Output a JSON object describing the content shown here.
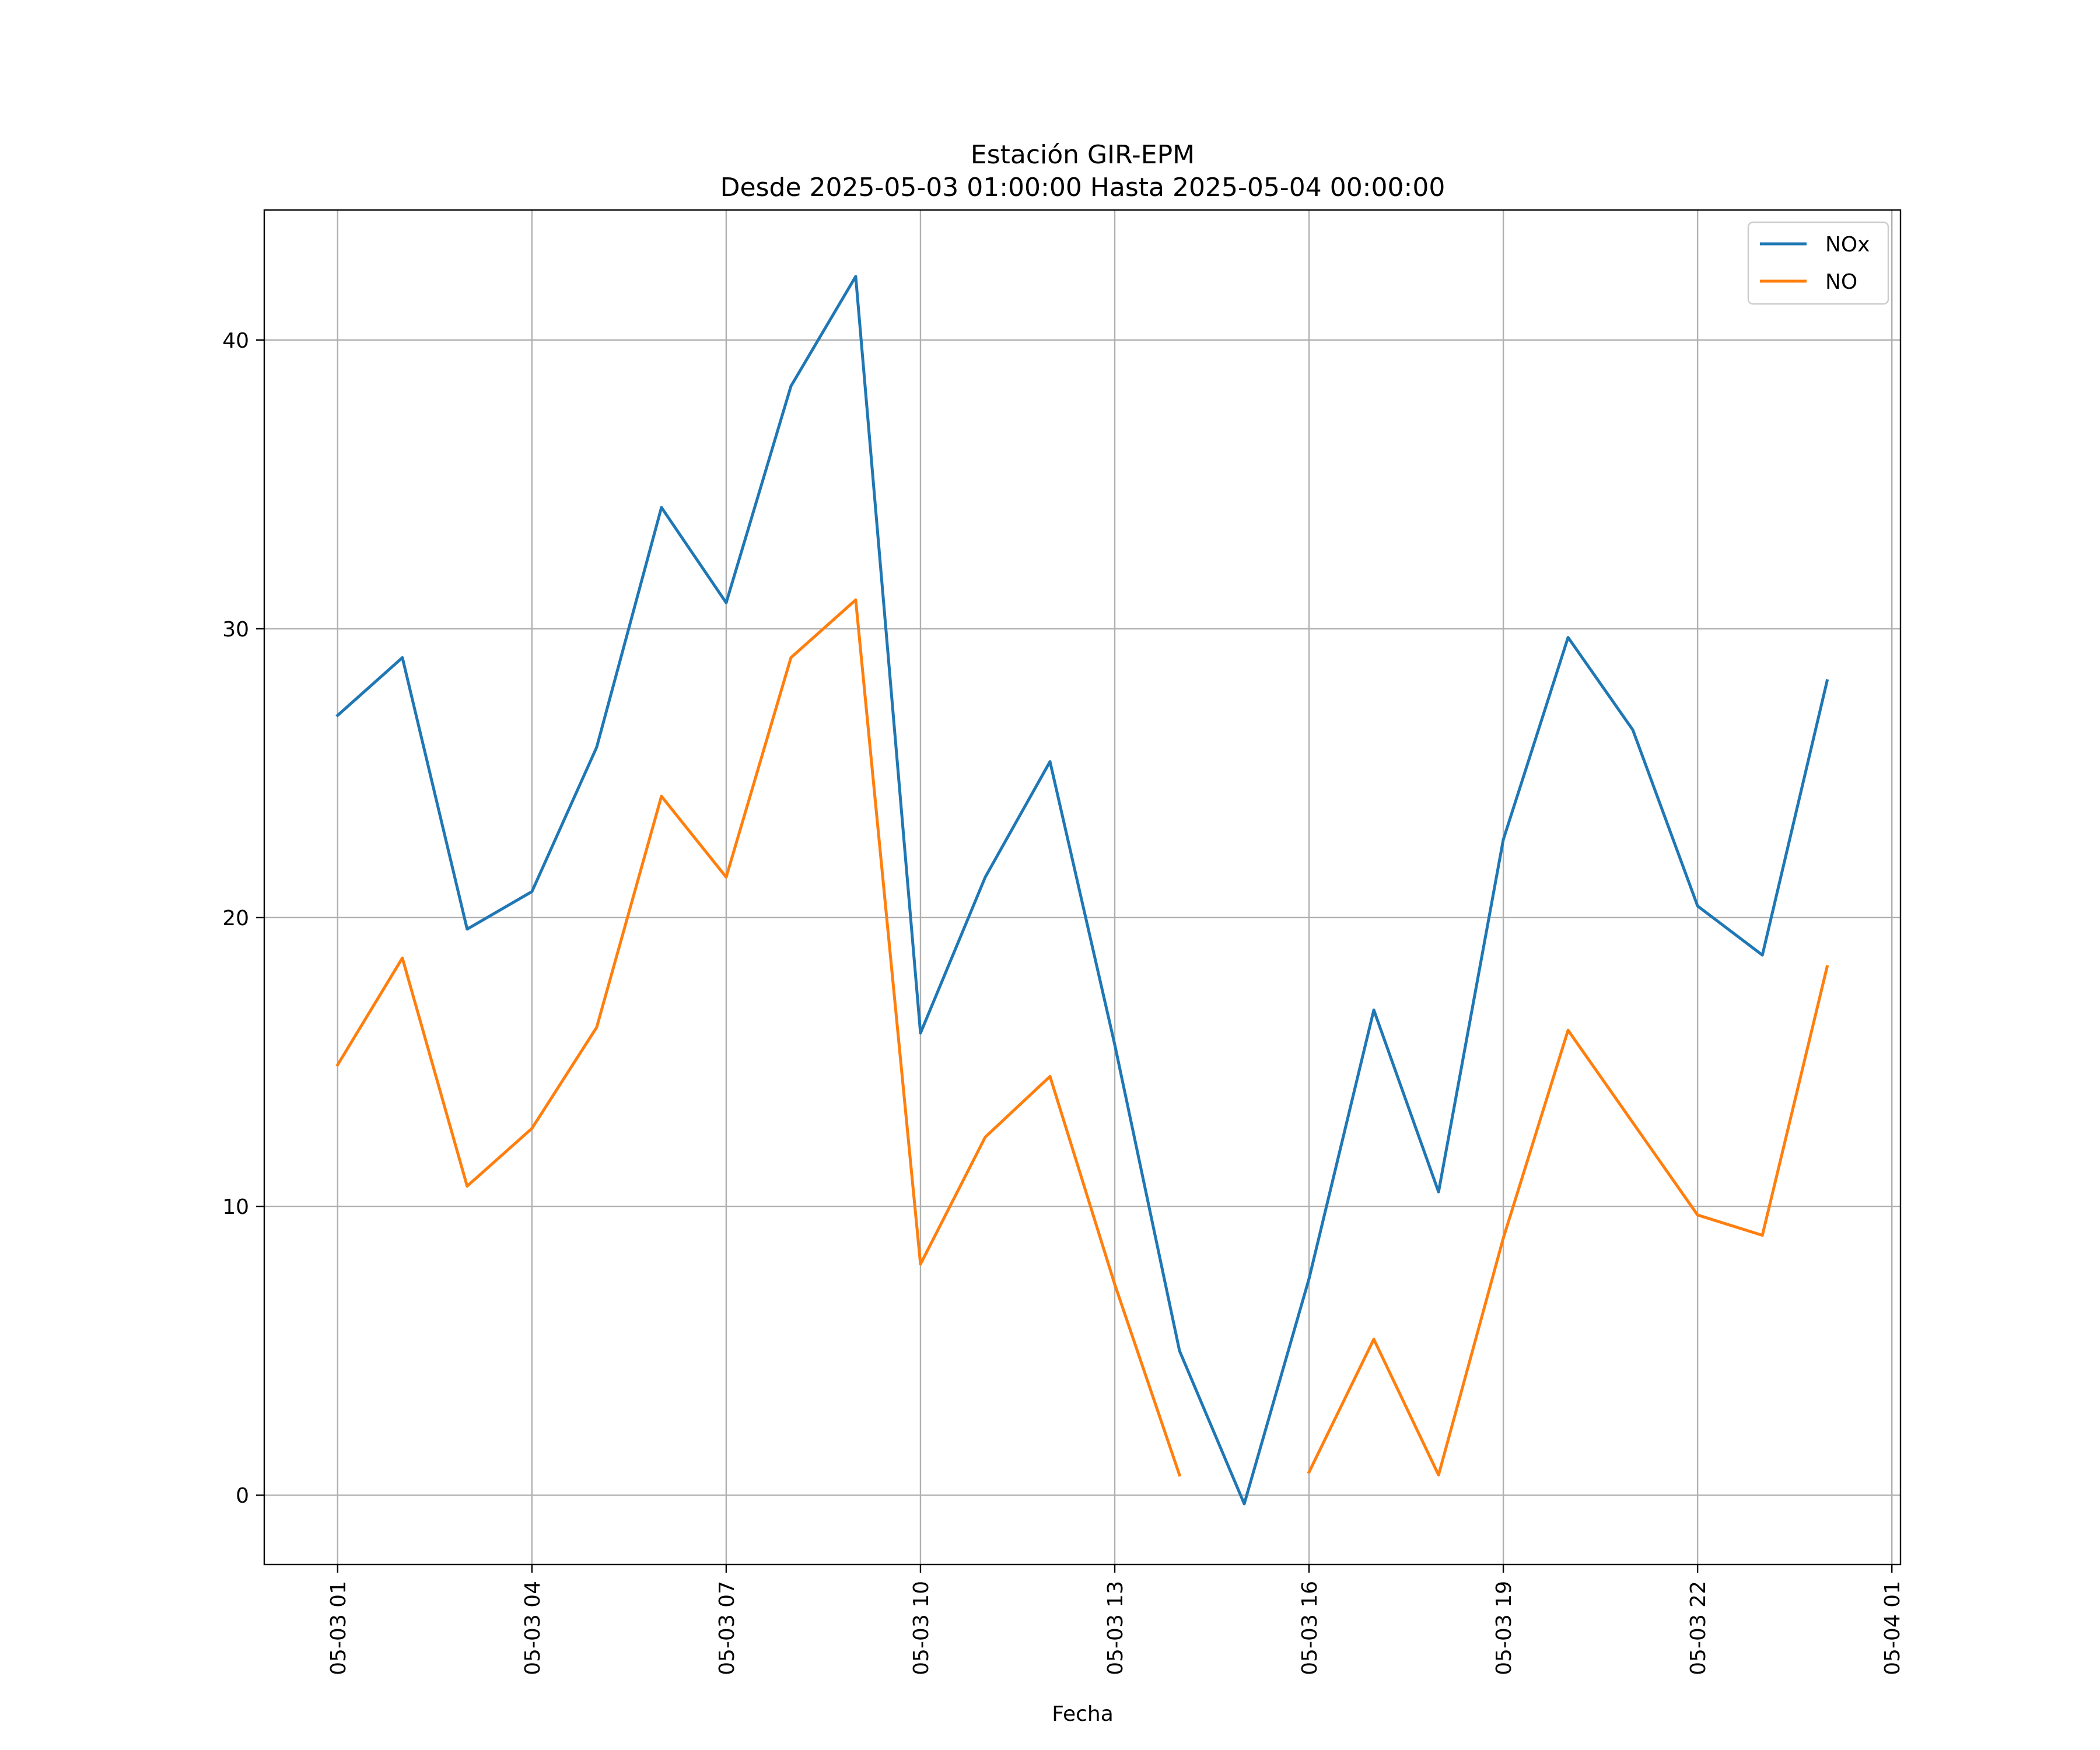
{
  "chart_data": {
    "type": "line",
    "title": "Estación GIR-EPM",
    "subtitle": "Desde 2025-05-03 01:00:00 Hasta 2025-05-04 00:00:00",
    "xlabel": "Fecha",
    "ylabel": "",
    "x": [
      "2025-05-03 01:00",
      "2025-05-03 02:00",
      "2025-05-03 03:00",
      "2025-05-03 04:00",
      "2025-05-03 05:00",
      "2025-05-03 06:00",
      "2025-05-03 07:00",
      "2025-05-03 08:00",
      "2025-05-03 09:00",
      "2025-05-03 10:00",
      "2025-05-03 11:00",
      "2025-05-03 12:00",
      "2025-05-03 13:00",
      "2025-05-03 14:00",
      "2025-05-03 15:00",
      "2025-05-03 16:00",
      "2025-05-03 17:00",
      "2025-05-03 18:00",
      "2025-05-03 19:00",
      "2025-05-03 20:00",
      "2025-05-03 21:00",
      "2025-05-03 22:00",
      "2025-05-03 23:00",
      "2025-05-04 00:00"
    ],
    "xlim": [
      "2025-05-02 23:52",
      "2025-05-04 01:08"
    ],
    "x_ticks": [
      "2025-05-03 01:00",
      "2025-05-03 04:00",
      "2025-05-03 07:00",
      "2025-05-03 10:00",
      "2025-05-03 13:00",
      "2025-05-03 16:00",
      "2025-05-03 19:00",
      "2025-05-03 22:00",
      "2025-05-04 01:00"
    ],
    "x_tick_labels": [
      "05-03 01",
      "05-03 04",
      "05-03 07",
      "05-03 10",
      "05-03 13",
      "05-03 16",
      "05-03 19",
      "05-03 22",
      "05-04 01"
    ],
    "ylim": [
      -2.4,
      44.5
    ],
    "y_ticks": [
      0,
      10,
      20,
      30,
      40
    ],
    "y_tick_labels": [
      "0",
      "10",
      "20",
      "30",
      "40"
    ],
    "grid": true,
    "legend_position": "upper right",
    "series": [
      {
        "name": "NOx",
        "color": "#1f77b4",
        "values": [
          27.0,
          29.0,
          19.6,
          20.9,
          25.9,
          34.2,
          30.9,
          38.4,
          42.2,
          16.0,
          21.4,
          25.4,
          15.6,
          5.0,
          -0.3,
          7.5,
          16.8,
          10.5,
          22.7,
          29.7,
          26.5,
          20.4,
          18.7,
          28.2
        ]
      },
      {
        "name": "NO",
        "color": "#ff7f0e",
        "values": [
          14.9,
          18.6,
          10.7,
          12.7,
          16.2,
          24.2,
          21.4,
          29.0,
          31.0,
          8.0,
          12.4,
          14.5,
          7.3,
          0.7,
          null,
          0.8,
          5.4,
          0.7,
          8.9,
          16.1,
          12.9,
          9.7,
          9.0,
          18.3
        ]
      }
    ]
  }
}
